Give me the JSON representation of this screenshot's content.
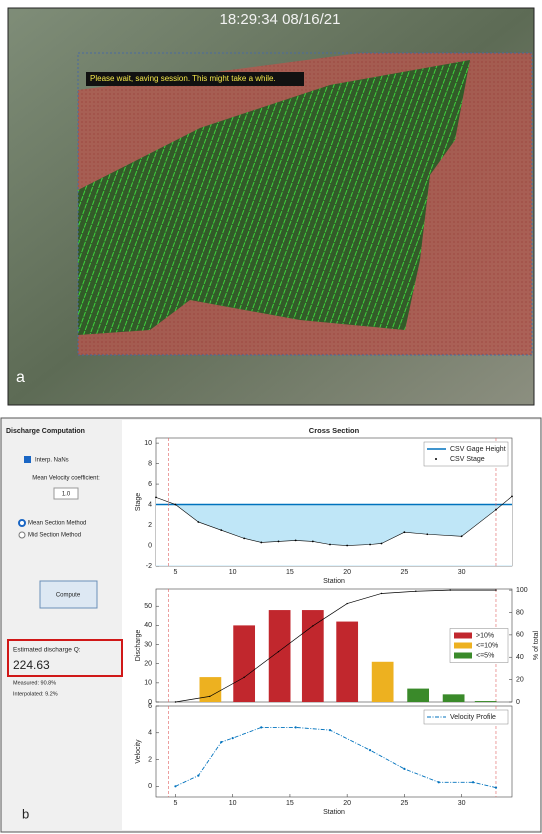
{
  "panel_a": {
    "timestamp": "18:29:34 08/16/21",
    "message": "Please wait, saving session. This might take a while.",
    "label": "a"
  },
  "panel_b": {
    "title": "Discharge Computation",
    "interp_nans": "Interp. NaNs",
    "coefficient_label": "Mean Velocity coefficient:",
    "coefficient": "1.0",
    "methods": [
      "Mean Section Method",
      "Mid Section Method"
    ],
    "compute": "Compute",
    "estimate_label": "Estimated discharge Q:",
    "estimate": "224.63",
    "measured": "Measured: 90.8%",
    "interpolated": "Interpolated: 9.2%",
    "label": "b"
  },
  "chart_data": [
    {
      "type": "line",
      "title": "Cross Section",
      "xlabel": "Station",
      "ylabel": "Stage",
      "xlim": [
        3.3,
        34.4
      ],
      "xticks": [
        5,
        10,
        15,
        20,
        25,
        30
      ],
      "ylim": [
        -2,
        10.5
      ],
      "yticks": [
        -2,
        0,
        2,
        4,
        6,
        8,
        10
      ],
      "edge_stations": [
        4.4,
        33
      ],
      "gage_height": {
        "name": "CSV Gage Height",
        "color": "#0072bd",
        "value": 4
      },
      "series": [
        {
          "name": "CSV Stage",
          "color": "#000000",
          "x": [
            3.3,
            5,
            7,
            9,
            11,
            12.5,
            14,
            15.5,
            17,
            18.5,
            20,
            22,
            23,
            25,
            27,
            30,
            33,
            34.4
          ],
          "values": [
            4.7,
            4,
            2.3,
            1.5,
            0.7,
            0.3,
            0.4,
            0.5,
            0.4,
            0.1,
            0,
            0.1,
            0.2,
            1.3,
            1.1,
            0.9,
            3.5,
            4.8
          ]
        }
      ],
      "legend": "upper right"
    },
    {
      "type": "bar",
      "ylabel": "Discharge",
      "y2label": "% of total",
      "xlim": [
        3.3,
        34.4
      ],
      "ylim": [
        0,
        59
      ],
      "yticks": [
        0,
        10,
        20,
        30,
        40,
        50
      ],
      "y2lim": [
        0,
        101
      ],
      "y2ticks": [
        0,
        20,
        40,
        60,
        80,
        100
      ],
      "series": [
        {
          "name": ">10%",
          "color": "#c1272d",
          "x": [
            11,
            14.1,
            17,
            20
          ],
          "values": [
            40,
            48,
            48,
            42
          ]
        },
        {
          "name": "<=10%",
          "color": "#edb120",
          "x": [
            8.05,
            23.1
          ],
          "values": [
            13,
            21
          ]
        },
        {
          "name": "<=5%",
          "color": "#3a8a2a",
          "x": [
            26.2,
            29.3,
            32.1
          ],
          "values": [
            7,
            4,
            0.5
          ]
        }
      ],
      "cumulative": {
        "color": "#000000",
        "axis": "y2",
        "x": [
          5,
          8,
          11,
          14,
          17,
          20,
          23,
          26,
          29,
          33
        ],
        "values": [
          0,
          5,
          22,
          45,
          68,
          88,
          97,
          99,
          100,
          100
        ]
      },
      "legend": "center right"
    },
    {
      "type": "line",
      "xlabel": "Station",
      "ylabel": "Velocity",
      "xlim": [
        3.3,
        34.4
      ],
      "xticks": [
        5,
        10,
        15,
        20,
        25,
        30
      ],
      "ylim": [
        -0.8,
        6
      ],
      "yticks": [
        0,
        2,
        4,
        6
      ],
      "series": [
        {
          "name": "Velocity Profile",
          "color": "#0072bd",
          "x": [
            5,
            7,
            9,
            10,
            12.5,
            15.5,
            18.5,
            22,
            25,
            28,
            31,
            33
          ],
          "values": [
            0,
            0.8,
            3.3,
            3.6,
            4.4,
            4.4,
            4.2,
            2.7,
            1.3,
            0.3,
            0.3,
            -0.1
          ]
        }
      ],
      "legend": "upper right"
    }
  ]
}
